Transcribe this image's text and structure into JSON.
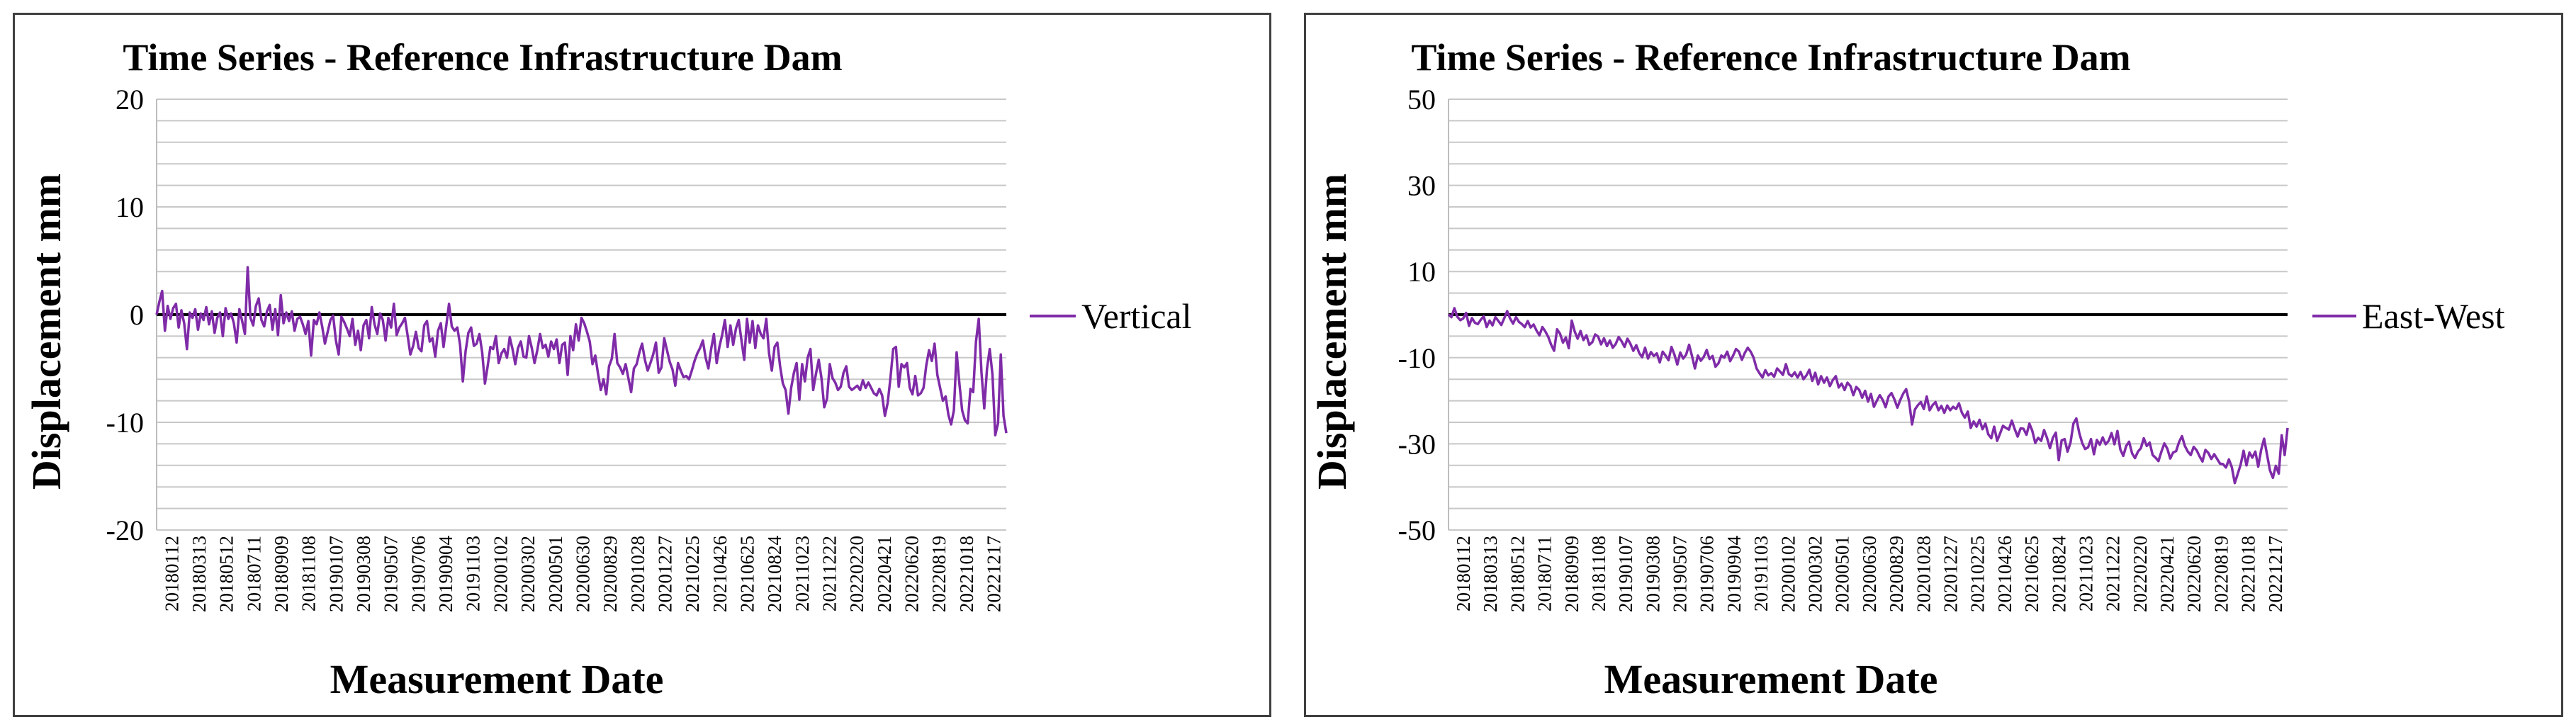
{
  "charts": [
    {
      "id": "vertical",
      "type": "line",
      "title": "Time Series - Reference Infrastructure Dam",
      "xlabel": "Measurement Date",
      "ylabel": "Displacement  mm",
      "ylim": [
        -20,
        20
      ],
      "yticks": [
        20,
        10,
        0,
        -10,
        -20
      ],
      "legend": "Vertical",
      "color": "#7F2BA8",
      "xticklabels": [
        "20180112",
        "20180313",
        "20180512",
        "20180711",
        "20180909",
        "20181108",
        "20190107",
        "20190308",
        "20190507",
        "20190706",
        "20190904",
        "20191103",
        "20200102",
        "20200302",
        "20200501",
        "20200630",
        "20200829",
        "20201028",
        "20201227",
        "20210225",
        "20210426",
        "20210625",
        "20210824",
        "20211023",
        "20211222",
        "20220220",
        "20220421",
        "20220620",
        "20220819",
        "20221018",
        "20221217"
      ],
      "values": [
        0,
        1.2,
        2.2,
        -1.5,
        0.8,
        -0.4,
        0.6,
        1.0,
        -1.2,
        0.4,
        -0.8,
        -3.2,
        0.2,
        -0.3,
        0.5,
        -1.4,
        0.1,
        -0.5,
        0.7,
        -0.9,
        0.3,
        -1.7,
        -0.3,
        0.2,
        -2.0,
        0.6,
        -0.4,
        0.1,
        -0.8,
        -2.6,
        0.5,
        -0.6,
        -1.8,
        4.4,
        -0.3,
        -1.0,
        0.8,
        1.5,
        -0.5,
        -1.1,
        0.3,
        0.9,
        -1.4,
        0.5,
        -1.9,
        1.8,
        -0.8,
        0.2,
        -0.6,
        0.3,
        -1.5,
        -0.4,
        -0.2,
        -0.9,
        -1.8,
        -0.6,
        -3.8,
        -0.5,
        -0.9,
        0.2,
        -1.1,
        -2.7,
        -1.6,
        -0.5,
        -0.1,
        -2.4,
        -3.7,
        -0.2,
        -0.7,
        -1.3,
        -2.0,
        -0.4,
        -2.8,
        -1.5,
        -3.3,
        -1.0,
        -0.5,
        -2.2,
        0.7,
        -0.9,
        -1.8,
        0.1,
        -0.5,
        -2.4,
        -0.3,
        -1.2,
        1.0,
        -1.9,
        -1.2,
        -0.8,
        -0.3,
        -2.0,
        -3.7,
        -2.9,
        -1.6,
        -3.1,
        -3.4,
        -1.0,
        -0.6,
        -2.5,
        -2.2,
        -3.9,
        -1.5,
        -0.8,
        -3.0,
        -1.0,
        1.0,
        -1.1,
        -1.5,
        -1.2,
        -2.8,
        -6.2,
        -3.4,
        -1.7,
        -1.2,
        -2.9,
        -2.7,
        -1.8,
        -3.5,
        -6.4,
        -4.8,
        -3.0,
        -3.2,
        -2.0,
        -4.5,
        -3.6,
        -3.2,
        -4.0,
        -2.1,
        -3.2,
        -4.6,
        -3.1,
        -2.5,
        -3.9,
        -4.0,
        -2.0,
        -3.1,
        -4.5,
        -3.3,
        -1.8,
        -3.1,
        -2.8,
        -3.9,
        -2.5,
        -3.2,
        -2.3,
        -4.5,
        -2.8,
        -2.6,
        -5.6,
        -2.0,
        -3.3,
        -0.9,
        -2.4,
        -0.3,
        -0.8,
        -1.6,
        -2.5,
        -4.6,
        -3.8,
        -5.5,
        -7.0,
        -6.0,
        -7.4,
        -4.8,
        -4.1,
        -1.8,
        -4.5,
        -4.9,
        -5.5,
        -4.6,
        -5.9,
        -7.2,
        -5.0,
        -4.6,
        -3.5,
        -2.7,
        -4.2,
        -5.2,
        -4.5,
        -3.7,
        -2.6,
        -5.4,
        -4.9,
        -2.2,
        -3.3,
        -4.4,
        -5.1,
        -6.6,
        -4.5,
        -5.2,
        -5.8,
        -5.7,
        -6.0,
        -5.2,
        -4.3,
        -3.6,
        -3.1,
        -2.4,
        -4.0,
        -5.0,
        -3.2,
        -1.8,
        -4.5,
        -3.0,
        -1.9,
        -0.5,
        -3.0,
        -1.0,
        -2.8,
        -1.3,
        -0.5,
        -2.4,
        -4.2,
        -0.4,
        -2.6,
        -0.6,
        -3.1,
        -1.0,
        -1.8,
        -2.2,
        -0.4,
        -3.6,
        -5.2,
        -3.0,
        -2.6,
        -4.8,
        -6.4,
        -7.0,
        -9.2,
        -6.8,
        -5.4,
        -4.5,
        -7.9,
        -4.6,
        -6.2,
        -4.0,
        -3.2,
        -7.0,
        -5.5,
        -4.2,
        -5.9,
        -8.6,
        -7.8,
        -4.6,
        -5.9,
        -6.3,
        -7.0,
        -6.7,
        -5.4,
        -4.8,
        -6.7,
        -7.0,
        -6.8,
        -6.6,
        -7.0,
        -6.1,
        -6.8,
        -6.3,
        -6.8,
        -7.3,
        -7.5,
        -6.9,
        -7.5,
        -9.4,
        -8.2,
        -5.9,
        -3.2,
        -3.0,
        -6.7,
        -4.6,
        -4.9,
        -4.5,
        -6.8,
        -7.4,
        -5.7,
        -7.5,
        -7.3,
        -6.8,
        -4.7,
        -3.3,
        -4.3,
        -2.7,
        -5.6,
        -6.8,
        -8.0,
        -7.6,
        -9.3,
        -10.2,
        -8.9,
        -3.5,
        -6.4,
        -8.9,
        -9.8,
        -10.1,
        -6.9,
        -7.2,
        -2.5,
        -0.4,
        -5.4,
        -8.7,
        -5.0,
        -3.2,
        -5.6,
        -11.2,
        -10.1,
        -3.7,
        -9.4,
        -11.0
      ]
    },
    {
      "id": "east-west",
      "type": "line",
      "title": "Time Series - Reference Infrastructure Dam",
      "xlabel": "Measurement Date",
      "ylabel": "Displacement  mm",
      "ylim": [
        -50,
        50
      ],
      "yticks": [
        50,
        30,
        10,
        -10,
        -30,
        -50
      ],
      "legend": "East-West",
      "color": "#7F2BA8",
      "xticklabels": [
        "20180112",
        "20180313",
        "20180512",
        "20180711",
        "20180909",
        "20181108",
        "20190107",
        "20190308",
        "20190507",
        "20190706",
        "20190904",
        "20191103",
        "20200102",
        "20200302",
        "20200501",
        "20200630",
        "20200829",
        "20201028",
        "20201227",
        "20210225",
        "20210426",
        "20210625",
        "20210824",
        "20211023",
        "20211222",
        "20220220",
        "20220421",
        "20220620",
        "20220819",
        "20221018",
        "20221217"
      ],
      "values": [
        0,
        -0.6,
        1.5,
        -0.5,
        -1.3,
        -0.9,
        0.4,
        -2.6,
        -0.8,
        -1.9,
        -2.2,
        -1.2,
        -0.4,
        -2.9,
        -1.4,
        -2.5,
        -0.6,
        -1.5,
        -2.4,
        -0.8,
        0.8,
        -0.9,
        -2.1,
        -0.6,
        -1.7,
        -2.2,
        -2.9,
        -1.5,
        -3.0,
        -2.3,
        -3.7,
        -4.8,
        -2.9,
        -3.9,
        -5.2,
        -7.0,
        -8.4,
        -3.4,
        -4.4,
        -6.5,
        -5.3,
        -7.8,
        -1.4,
        -3.9,
        -5.6,
        -3.8,
        -5.9,
        -4.8,
        -7.0,
        -6.4,
        -4.6,
        -5.1,
        -6.9,
        -5.5,
        -7.3,
        -6.0,
        -7.7,
        -6.8,
        -5.2,
        -6.2,
        -7.5,
        -5.6,
        -6.8,
        -8.4,
        -7.1,
        -8.9,
        -9.9,
        -7.7,
        -10.2,
        -8.7,
        -9.6,
        -9.0,
        -11.1,
        -8.6,
        -9.5,
        -10.6,
        -7.5,
        -9.3,
        -11.6,
        -8.8,
        -10.2,
        -9.3,
        -7.0,
        -9.6,
        -12.5,
        -9.5,
        -10.7,
        -9.8,
        -8.2,
        -10.3,
        -9.6,
        -12.1,
        -11.3,
        -9.5,
        -10.0,
        -8.6,
        -10.8,
        -9.5,
        -8.0,
        -8.6,
        -10.5,
        -8.9,
        -7.7,
        -8.6,
        -10.0,
        -12.5,
        -13.6,
        -14.6,
        -12.9,
        -14.1,
        -13.6,
        -14.4,
        -12.5,
        -13.2,
        -14.0,
        -11.5,
        -13.8,
        -14.3,
        -13.4,
        -14.6,
        -13.3,
        -15.0,
        -14.1,
        -12.8,
        -15.4,
        -13.5,
        -16.2,
        -14.3,
        -15.8,
        -14.6,
        -16.6,
        -15.2,
        -14.3,
        -16.9,
        -16.0,
        -17.5,
        -15.8,
        -16.6,
        -18.7,
        -16.8,
        -17.5,
        -19.3,
        -17.7,
        -20.2,
        -18.4,
        -21.4,
        -20.0,
        -18.7,
        -19.8,
        -21.5,
        -19.0,
        -18.2,
        -19.7,
        -21.6,
        -19.8,
        -18.3,
        -17.3,
        -20.2,
        -25.5,
        -22.0,
        -21.0,
        -20.3,
        -21.9,
        -19.0,
        -22.2,
        -21.0,
        -20.3,
        -22.2,
        -21.2,
        -22.8,
        -21.1,
        -22.2,
        -21.4,
        -21.9,
        -20.6,
        -22.8,
        -23.9,
        -22.5,
        -26.3,
        -24.8,
        -26.0,
        -24.4,
        -26.6,
        -25.3,
        -27.8,
        -28.7,
        -26.0,
        -29.3,
        -27.6,
        -25.8,
        -26.3,
        -26.7,
        -24.6,
        -26.6,
        -28.3,
        -26.4,
        -26.5,
        -27.9,
        -25.3,
        -27.0,
        -29.8,
        -28.6,
        -29.3,
        -26.8,
        -28.6,
        -31.0,
        -28.6,
        -27.4,
        -33.8,
        -29.2,
        -28.9,
        -31.8,
        -29.7,
        -25.3,
        -24.1,
        -27.5,
        -29.8,
        -31.2,
        -30.8,
        -28.9,
        -32.4,
        -29.1,
        -30.2,
        -28.5,
        -30.1,
        -29.3,
        -27.5,
        -30.1,
        -27.0,
        -31.3,
        -32.8,
        -30.5,
        -29.5,
        -32.2,
        -33.3,
        -31.8,
        -31.0,
        -28.7,
        -30.5,
        -29.7,
        -32.6,
        -33.2,
        -34.0,
        -31.8,
        -29.9,
        -31.1,
        -33.4,
        -32.0,
        -31.7,
        -29.6,
        -28.2,
        -30.5,
        -31.8,
        -32.6,
        -30.7,
        -31.5,
        -32.9,
        -34.1,
        -31.4,
        -32.1,
        -33.5,
        -32.4,
        -33.5,
        -34.6,
        -34.7,
        -35.5,
        -33.6,
        -35.4,
        -39.1,
        -37.0,
        -34.8,
        -31.6,
        -35.0,
        -32.0,
        -33.2,
        -31.8,
        -35.3,
        -31.4,
        -28.8,
        -32.5,
        -36.2,
        -37.9,
        -35.1,
        -36.9,
        -28.0,
        -32.6,
        -26.3
      ]
    }
  ]
}
